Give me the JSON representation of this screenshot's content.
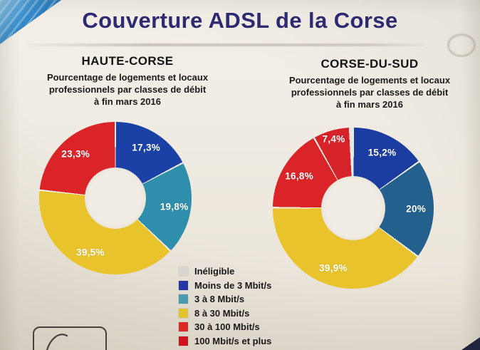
{
  "page": {
    "title": "Couverture ADSL de la Corse"
  },
  "chart_data": [
    {
      "type": "pie",
      "title": "HAUTE-CORSE",
      "subtitle": "Pourcentage de logements et locaux\nprofessionnels par classes de débit\nà fin mars 2016",
      "donut": true,
      "start_angle_deg": 0,
      "direction": "clockwise",
      "labels": [
        "Moins de 3 Mbit/s",
        "3 à 8 Mbit/s",
        "8 à 30 Mbit/s",
        "30 à 100 Mbit/s"
      ],
      "values": [
        17.3,
        19.8,
        39.5,
        23.3
      ],
      "display_labels": [
        "17,3%",
        "19,8%",
        "39,5%",
        "23,3%"
      ],
      "colors": [
        "#1c41a6",
        "#2e8eab",
        "#e8c32b",
        "#da2428"
      ],
      "units": "%"
    },
    {
      "type": "pie",
      "title": "CORSE-DU-SUD",
      "subtitle": "Pourcentage de logements et locaux\nprofessionnels par classes de débit\nà fin mars 2016",
      "donut": true,
      "start_angle_deg": 0,
      "direction": "clockwise",
      "labels": [
        "Moins de 3 Mbit/s",
        "3 à 8 Mbit/s",
        "8 à 30 Mbit/s",
        "30 à 100 Mbit/s",
        "100 Mbit/s et plus",
        "Inéligible"
      ],
      "values": [
        15.2,
        20,
        39.9,
        16.8,
        7.4,
        0.7
      ],
      "display_labels": [
        "15,2%",
        "20%",
        "39,9%",
        "16,8%",
        "7,4%",
        ""
      ],
      "colors": [
        "#1b3da2",
        "#23608e",
        "#e8c32b",
        "#da2428",
        "#d62329",
        "#ece7dd"
      ],
      "units": "%"
    }
  ],
  "legend": {
    "position": "bottom-center",
    "items": [
      {
        "label": "Inéligible",
        "color": "#d9d6d2"
      },
      {
        "label": "Moins de 3 Mbit/s",
        "color": "#2736a6"
      },
      {
        "label": "3 à 8 Mbit/s",
        "color": "#4b9aae"
      },
      {
        "label": "8 à 30 Mbit/s",
        "color": "#e5c230"
      },
      {
        "label": "30 à 100 Mbit/s",
        "color": "#dc2a25"
      },
      {
        "label": "100 Mbit/s et plus",
        "color": "#ce1220"
      }
    ]
  }
}
